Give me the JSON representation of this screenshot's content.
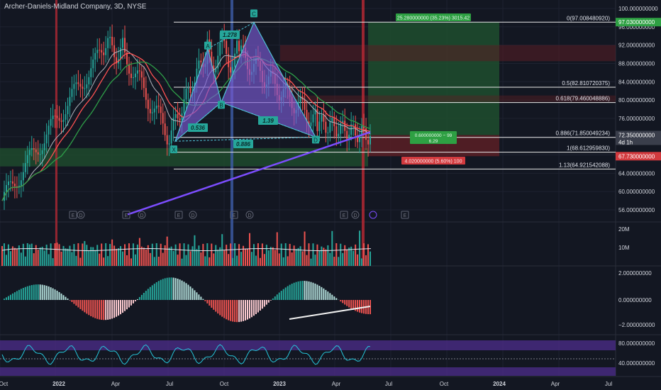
{
  "header": {
    "title": "Archer-Daniels-Midland Company, 3D, NYSE"
  },
  "colors": {
    "background": "#131722",
    "up": "#26a69a",
    "down": "#ef5350",
    "harmonic_fill": "#7b5bd6",
    "harmonic_line": "#4fc3d8",
    "ma_fast": "#ff5252",
    "ma_mid": "#2e9e48",
    "ma_slow": "#7c4dff",
    "ma_grey": "#b2b5be"
  },
  "price_axis": {
    "ticks": [
      "100.000000000",
      "96.000000000",
      "92.000000000",
      "88.000000000",
      "84.000000000",
      "80.000000000",
      "76.000000000",
      "72.350000000",
      "71.750000000",
      "67.730000000",
      "64.000000000",
      "60.000000000",
      "56.000000000"
    ],
    "tag_top": "97.030000000",
    "tag_current": "72.350000000",
    "tag_current_sub": "4d 1h",
    "tag_stop": "67.730000000"
  },
  "volume_axis": {
    "ticks": [
      "20M",
      "10M"
    ]
  },
  "macd_axis": {
    "ticks": [
      "2.000000000",
      "0.000000000",
      "−2.000000000"
    ]
  },
  "rsi_axis": {
    "ticks": [
      "80.000000000",
      "40.000000000"
    ]
  },
  "time_axis": {
    "labels": [
      "Oct",
      "2022",
      "Apr",
      "Jul",
      "Oct",
      "2023",
      "Apr",
      "Jul",
      "Oct",
      "2024",
      "Apr",
      "Jul"
    ]
  },
  "fib_levels": [
    {
      "label": "0(97.008480920)",
      "value": 97.008
    },
    {
      "label": "0.5(82.810720375)",
      "value": 82.811
    },
    {
      "label": "0.618(79.460048886)",
      "value": 79.46
    },
    {
      "label": "0.886(71.850049234)",
      "value": 71.85
    },
    {
      "label": "1(68.612959830)",
      "value": 68.613
    },
    {
      "label": "1.13(64.921542088)",
      "value": 64.922
    }
  ],
  "pattern": {
    "points": [
      "X",
      "A",
      "B",
      "C",
      "D"
    ],
    "ratios": [
      "0.536",
      "1.278",
      "1.39",
      "0.886"
    ]
  },
  "position": {
    "target_label": "25.280000000 (35.23%) 3015.42",
    "middle_label_1": "0.600000000 − 99",
    "middle_label_2": "6.29",
    "stop_label": "4.020000000 (5.60%) 100"
  },
  "event_markers": {
    "earnings": "E",
    "dividend": "D"
  }
}
